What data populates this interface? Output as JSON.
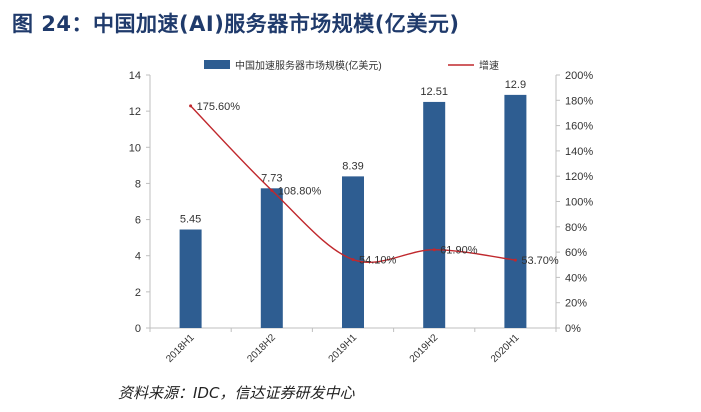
{
  "figure": {
    "title": "图 24：中国加速(AI)服务器市场规模(亿美元)",
    "source": "资料来源：IDC，信达证券研发中心"
  },
  "colors": {
    "bar": "#2e5d91",
    "line": "#c0282d",
    "axis": "#bfbfbf",
    "text": "#333333"
  },
  "chart_data": {
    "type": "bar",
    "title": "图 24：中国加速(AI)服务器市场规模(亿美元)",
    "categories": [
      "2018H1",
      "2018H2",
      "2019H1",
      "2019H2",
      "2020H1"
    ],
    "series": [
      {
        "name": "中国加速服务器市场规模(亿美元)",
        "type": "bar",
        "axis": "left",
        "values": [
          5.45,
          7.73,
          8.39,
          12.51,
          12.9
        ],
        "labels": [
          "5.45",
          "7.73",
          "8.39",
          "12.51",
          "12.9"
        ]
      },
      {
        "name": "增速",
        "type": "line",
        "axis": "right",
        "values": [
          175.6,
          108.8,
          54.1,
          61.9,
          53.7
        ],
        "labels": [
          "175.60%",
          "108.80%",
          "54.10%",
          "61.90%",
          "53.70%"
        ]
      }
    ],
    "y_left": {
      "min": 0,
      "max": 14,
      "ticks": [
        "0",
        "2",
        "4",
        "6",
        "8",
        "10",
        "12",
        "14"
      ]
    },
    "y_right": {
      "min": 0,
      "max": 200,
      "ticks": [
        "0%",
        "20%",
        "40%",
        "60%",
        "80%",
        "100%",
        "120%",
        "140%",
        "160%",
        "180%",
        "200%"
      ]
    },
    "grid": false,
    "legend": "top"
  }
}
